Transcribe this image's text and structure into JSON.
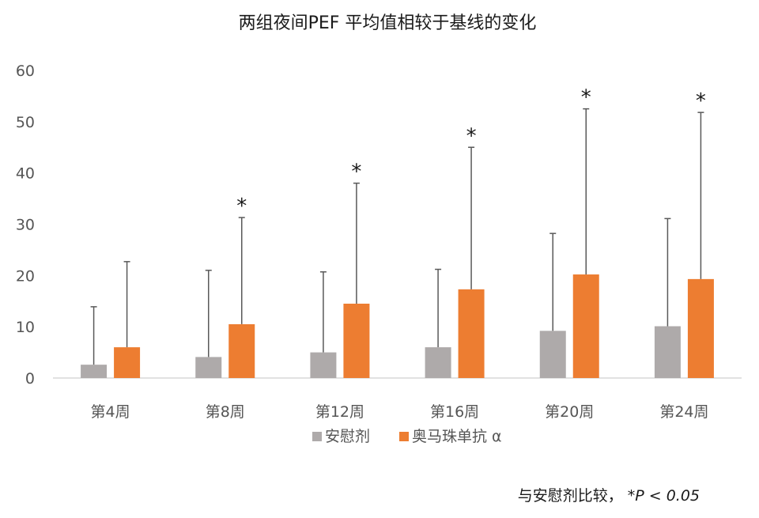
{
  "chart_data": {
    "type": "bar",
    "title": "两组夜间PEF 平均值相较于基线的变化",
    "categories": [
      "第4周",
      "第8周",
      "第12周",
      "第16周",
      "第20周",
      "第24周"
    ],
    "ylim": [
      0,
      60
    ],
    "yticks": [
      "0",
      "10",
      "20",
      "30",
      "40",
      "50",
      "60"
    ],
    "grid": false,
    "legend_position": "bottom",
    "series": [
      {
        "name": "安慰剂",
        "color": "#aeaaaa",
        "values": [
          2.6,
          4.1,
          5.0,
          6.0,
          9.2,
          10.1
        ],
        "error_upper": [
          13.9,
          21.0,
          20.7,
          21.2,
          28.2,
          31.1
        ]
      },
      {
        "name": "奥马珠单抗 α",
        "color": "#ed7d31",
        "values": [
          6.0,
          10.5,
          14.5,
          17.3,
          20.2,
          19.3
        ],
        "error_upper": [
          22.7,
          31.3,
          38.0,
          45.0,
          52.5,
          51.8
        ]
      }
    ],
    "significance_marker": "*",
    "significant": [
      false,
      true,
      true,
      true,
      true,
      true
    ]
  },
  "footnote": {
    "text": "与安慰剂比较，",
    "significance": "*P < 0.05"
  }
}
